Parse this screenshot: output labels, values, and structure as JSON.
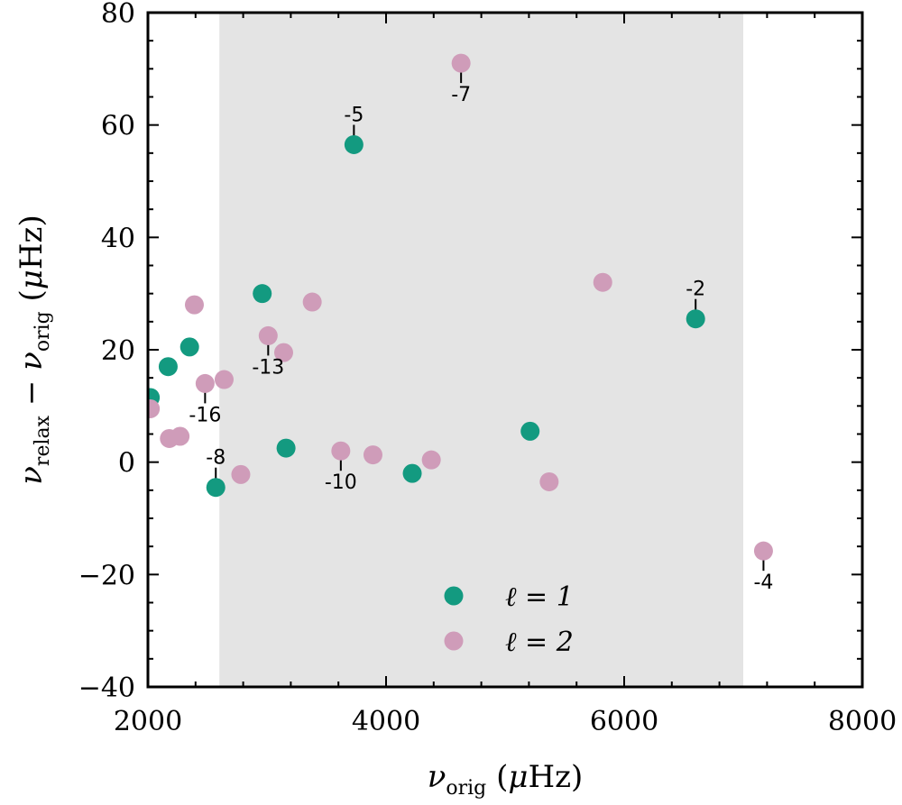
{
  "chart_data": {
    "type": "scatter",
    "xlabel": "ν_orig (μHz)",
    "ylabel": "ν_relax − ν_orig (μHz)",
    "xlim": [
      2000,
      8000
    ],
    "ylim": [
      -40,
      80
    ],
    "x_ticks": [
      2000,
      4000,
      6000,
      8000
    ],
    "x_tick_labels": [
      "2000",
      "4000",
      "6000",
      "8000"
    ],
    "y_ticks": [
      -40,
      -20,
      0,
      20,
      40,
      60,
      80
    ],
    "y_tick_labels": [
      "−40",
      "−20",
      "0",
      "20",
      "40",
      "60",
      "80"
    ],
    "shaded_region": {
      "x": [
        2600,
        7000
      ],
      "color": "#e4e4e4"
    },
    "grid": false,
    "legend_position": "bottom-center",
    "series": [
      {
        "name": "ℓ = 1",
        "color": "#139a80",
        "points": [
          {
            "x": 2020,
            "y": 11.5
          },
          {
            "x": 2170,
            "y": 17
          },
          {
            "x": 2350,
            "y": 20.5
          },
          {
            "x": 2570,
            "y": -4.5
          },
          {
            "x": 2960,
            "y": 30
          },
          {
            "x": 3160,
            "y": 2.5
          },
          {
            "x": 3730,
            "y": 56.5
          },
          {
            "x": 4220,
            "y": -2
          },
          {
            "x": 5210,
            "y": 5.5
          },
          {
            "x": 6600,
            "y": 25.5
          }
        ]
      },
      {
        "name": "ℓ = 2",
        "color": "#cf9cb9",
        "points": [
          {
            "x": 2020,
            "y": 9.5
          },
          {
            "x": 2180,
            "y": 4.2
          },
          {
            "x": 2270,
            "y": 4.6
          },
          {
            "x": 2390,
            "y": 28
          },
          {
            "x": 2480,
            "y": 14
          },
          {
            "x": 2640,
            "y": 14.7
          },
          {
            "x": 2780,
            "y": -2.2
          },
          {
            "x": 3010,
            "y": 22.5
          },
          {
            "x": 3140,
            "y": 19.5
          },
          {
            "x": 3380,
            "y": 28.5
          },
          {
            "x": 3620,
            "y": 2
          },
          {
            "x": 3890,
            "y": 1.3
          },
          {
            "x": 4380,
            "y": 0.4
          },
          {
            "x": 4630,
            "y": 71
          },
          {
            "x": 5370,
            "y": -3.5
          },
          {
            "x": 5820,
            "y": 32
          },
          {
            "x": 7170,
            "y": -15.8
          }
        ]
      }
    ],
    "annotations": [
      {
        "text": "-5",
        "x": 3730,
        "y": 56.5,
        "side": "above"
      },
      {
        "text": "-7",
        "x": 4630,
        "y": 71,
        "side": "below"
      },
      {
        "text": "-2",
        "x": 6600,
        "y": 25.5,
        "side": "above"
      },
      {
        "text": "-13",
        "x": 3010,
        "y": 22.5,
        "side": "below"
      },
      {
        "text": "-16",
        "x": 2480,
        "y": 14,
        "side": "below"
      },
      {
        "text": "-8",
        "x": 2570,
        "y": -4.5,
        "side": "above"
      },
      {
        "text": "-10",
        "x": 3620,
        "y": 2,
        "side": "below"
      },
      {
        "text": "-4",
        "x": 7170,
        "y": -15.8,
        "side": "below"
      }
    ]
  }
}
